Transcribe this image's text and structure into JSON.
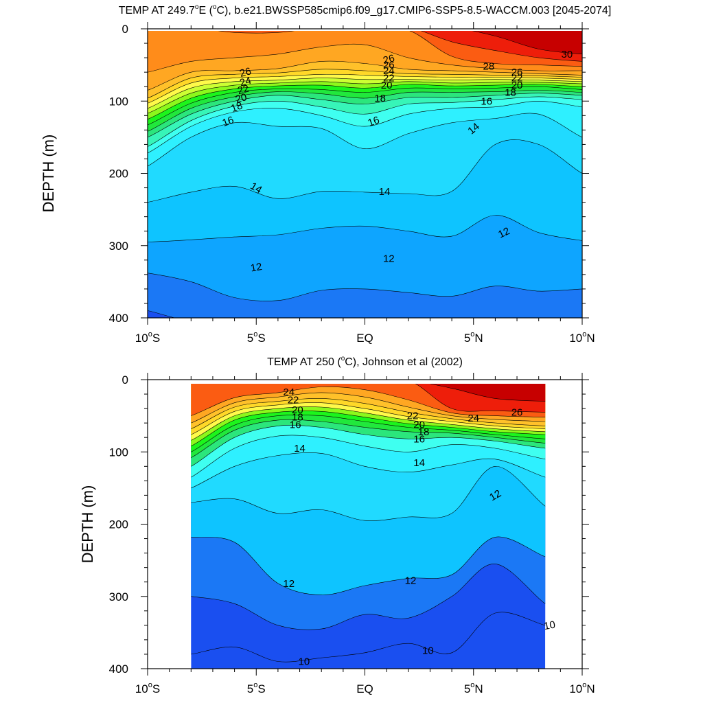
{
  "chart_data": [
    {
      "type": "heatmap",
      "title": "TEMP AT 249.7°E (°C), b.e21.BWSSP585cmip6.f09_g17.CMIP6-SSP5-8.5-WACCM.003 [2045-2074]",
      "title_parts": [
        "TEMP AT 249.7",
        "o",
        "E (",
        "o",
        "C), b.e21.BWSSP585cmip6.f09_g17.CMIP6-SSP5-8.5-WACCM.003 [2045-2074]"
      ],
      "xlabel": "",
      "ylabel": "DEPTH (m)",
      "xlim": [
        -10,
        10
      ],
      "ylim": [
        400,
        0
      ],
      "x_ticks": [
        -10,
        -5,
        0,
        5,
        10
      ],
      "x_tick_labels": [
        {
          "pre": "10",
          "sup": "o",
          "post": "S"
        },
        {
          "pre": "5",
          "sup": "o",
          "post": "S"
        },
        {
          "pre": "EQ",
          "sup": "",
          "post": ""
        },
        {
          "pre": "5",
          "sup": "o",
          "post": "N"
        },
        {
          "pre": "10",
          "sup": "o",
          "post": "N"
        }
      ],
      "y_ticks": [
        0,
        100,
        200,
        300,
        400
      ],
      "y_tick_labels": [
        "0",
        "100",
        "200",
        "300",
        "400"
      ],
      "data_xrange": [
        -10,
        10
      ],
      "contour_levels": [
        10,
        11,
        12,
        13,
        14,
        15,
        16,
        17,
        18,
        19,
        20,
        21,
        22,
        23,
        24,
        25,
        26,
        27,
        28,
        29,
        30
      ],
      "isotherm_x": [
        -10,
        -8,
        -6,
        -4,
        -2,
        0,
        2,
        4,
        6,
        8,
        10
      ],
      "isotherms": [
        {
          "level": 11,
          "depth": [
            390,
            405,
            405,
            405,
            405,
            405,
            405,
            405,
            405,
            405,
            405
          ]
        },
        {
          "level": 12,
          "depth": [
            338,
            350,
            372,
            376,
            362,
            360,
            365,
            370,
            356,
            363,
            360
          ]
        },
        {
          "level": 13,
          "depth": [
            295,
            292,
            288,
            285,
            276,
            273,
            280,
            287,
            258,
            282,
            293
          ]
        },
        {
          "level": 14,
          "depth": [
            240,
            226,
            218,
            235,
            225,
            226,
            228,
            225,
            160,
            160,
            200
          ]
        },
        {
          "level": 15,
          "depth": [
            190,
            150,
            130,
            135,
            138,
            166,
            145,
            130,
            124,
            118,
            150
          ]
        },
        {
          "level": 16,
          "depth": [
            172,
            135,
            115,
            110,
            120,
            135,
            118,
            110,
            108,
            100,
            108
          ]
        },
        {
          "level": 17,
          "depth": [
            163,
            127,
            107,
            100,
            108,
            118,
            104,
            102,
            98,
            94,
            98
          ]
        },
        {
          "level": 18,
          "depth": [
            150,
            118,
            100,
            92,
            98,
            104,
            95,
            95,
            92,
            89,
            92
          ]
        },
        {
          "level": 19,
          "depth": [
            142,
            110,
            94,
            87,
            90,
            96,
            88,
            88,
            87,
            85,
            88
          ]
        },
        {
          "level": 20,
          "depth": [
            133,
            103,
            88,
            83,
            84,
            88,
            82,
            83,
            82,
            80,
            84
          ]
        },
        {
          "level": 21,
          "depth": [
            125,
            96,
            83,
            79,
            78,
            82,
            77,
            79,
            78,
            77,
            80
          ]
        },
        {
          "level": 22,
          "depth": [
            117,
            89,
            78,
            75,
            73,
            76,
            73,
            75,
            74,
            74,
            76
          ]
        },
        {
          "level": 23,
          "depth": [
            110,
            82,
            73,
            71,
            68,
            70,
            70,
            71,
            70,
            71,
            73
          ]
        },
        {
          "level": 24,
          "depth": [
            103,
            75,
            68,
            66,
            63,
            64,
            66,
            67,
            67,
            68,
            70
          ]
        },
        {
          "level": 25,
          "depth": [
            96,
            68,
            63,
            61,
            56,
            58,
            62,
            63,
            64,
            65,
            67
          ]
        },
        {
          "level": 26,
          "depth": [
            85,
            60,
            58,
            55,
            45,
            48,
            56,
            58,
            60,
            62,
            64
          ]
        },
        {
          "level": 27,
          "depth": [
            60,
            45,
            40,
            35,
            25,
            22,
            40,
            50,
            55,
            58,
            58
          ]
        },
        {
          "level": 28,
          "depth": [
            -1,
            -1,
            5,
            5,
            -1,
            -1,
            2,
            38,
            48,
            50,
            52
          ]
        },
        {
          "level": 29,
          "depth": [
            -1,
            -1,
            -1,
            -1,
            -1,
            -1,
            -1,
            18,
            30,
            40,
            45
          ]
        },
        {
          "level": 30,
          "depth": [
            -1,
            -1,
            -1,
            -1,
            -1,
            -1,
            -1,
            -1,
            10,
            28,
            35
          ]
        }
      ],
      "contour_labels": [
        {
          "text": "30",
          "x": 9.3,
          "y": 35,
          "angle": 0
        },
        {
          "text": "28",
          "x": 5.7,
          "y": 52,
          "angle": 0
        },
        {
          "text": "26",
          "x": 7.0,
          "y": 60,
          "angle": 0
        },
        {
          "text": "22",
          "x": 7.0,
          "y": 68,
          "angle": 0
        },
        {
          "text": "20",
          "x": 7.0,
          "y": 78,
          "angle": 0
        },
        {
          "text": "18",
          "x": 6.7,
          "y": 88,
          "angle": 0
        },
        {
          "text": "16",
          "x": 5.6,
          "y": 100,
          "angle": 0
        },
        {
          "text": "14",
          "x": 5.0,
          "y": 138,
          "angle": -40
        },
        {
          "text": "12",
          "x": 6.4,
          "y": 282,
          "angle": -25
        },
        {
          "text": "26",
          "x": 1.1,
          "y": 42,
          "angle": -15
        },
        {
          "text": "26",
          "x": 1.1,
          "y": 50,
          "angle": 0
        },
        {
          "text": "24",
          "x": 1.1,
          "y": 58,
          "angle": 0
        },
        {
          "text": "22",
          "x": 1.1,
          "y": 68,
          "angle": 0
        },
        {
          "text": "20",
          "x": 1.0,
          "y": 78,
          "angle": 0
        },
        {
          "text": "18",
          "x": 0.7,
          "y": 96,
          "angle": 0
        },
        {
          "text": "16",
          "x": 0.4,
          "y": 128,
          "angle": -20
        },
        {
          "text": "14",
          "x": 0.9,
          "y": 225,
          "angle": 0
        },
        {
          "text": "12",
          "x": 1.1,
          "y": 318,
          "angle": 0
        },
        {
          "text": "26",
          "x": -5.5,
          "y": 60,
          "angle": -15
        },
        {
          "text": "24",
          "x": -5.5,
          "y": 73,
          "angle": -15
        },
        {
          "text": "22",
          "x": -5.6,
          "y": 84,
          "angle": -15
        },
        {
          "text": "20",
          "x": -5.7,
          "y": 96,
          "angle": -15
        },
        {
          "text": "18",
          "x": -5.9,
          "y": 108,
          "angle": -20
        },
        {
          "text": "16",
          "x": -6.3,
          "y": 128,
          "angle": -20
        },
        {
          "text": "14",
          "x": -5.0,
          "y": 220,
          "angle": 30
        },
        {
          "text": "12",
          "x": -5.0,
          "y": 330,
          "angle": -10
        }
      ]
    },
    {
      "type": "heatmap",
      "title": "TEMP AT 250 (°C), Johnson et al (2002)",
      "title_parts": [
        "TEMP AT 250 (",
        "o",
        "C), Johnson et al (2002)"
      ],
      "xlabel": "",
      "ylabel": "DEPTH (m)",
      "xlim": [
        -10,
        10
      ],
      "ylim": [
        400,
        0
      ],
      "x_ticks": [
        -10,
        -5,
        0,
        5,
        10
      ],
      "x_tick_labels": [
        {
          "pre": "10",
          "sup": "o",
          "post": "S"
        },
        {
          "pre": "5",
          "sup": "o",
          "post": "S"
        },
        {
          "pre": "EQ",
          "sup": "",
          "post": ""
        },
        {
          "pre": "5",
          "sup": "o",
          "post": "N"
        },
        {
          "pre": "10",
          "sup": "o",
          "post": "N"
        }
      ],
      "y_ticks": [
        0,
        100,
        200,
        300,
        400
      ],
      "y_tick_labels": [
        "0",
        "100",
        "200",
        "300",
        "400"
      ],
      "data_xrange": [
        -8,
        8.3
      ],
      "contour_levels": [
        10,
        11,
        12,
        13,
        14,
        15,
        16,
        17,
        18,
        19,
        20,
        21,
        22,
        23,
        24,
        25,
        26
      ],
      "isotherm_x": [
        -8,
        -6,
        -4,
        -2,
        0,
        2,
        4,
        6,
        8.3
      ],
      "isotherms": [
        {
          "level": 10,
          "depth": [
            380,
            370,
            390,
            385,
            378,
            365,
            378,
            323,
            340
          ]
        },
        {
          "level": 11,
          "depth": [
            300,
            310,
            340,
            345,
            325,
            330,
            300,
            255,
            310
          ]
        },
        {
          "level": 12,
          "depth": [
            218,
            225,
            282,
            298,
            285,
            275,
            270,
            218,
            245
          ]
        },
        {
          "level": 13,
          "depth": [
            170,
            165,
            185,
            180,
            195,
            190,
            185,
            120,
            175
          ]
        },
        {
          "level": 14,
          "depth": [
            150,
            120,
            105,
            102,
            120,
            128,
            118,
            110,
            135
          ]
        },
        {
          "level": 15,
          "depth": [
            135,
            95,
            78,
            80,
            92,
            100,
            90,
            95,
            110
          ]
        },
        {
          "level": 16,
          "depth": [
            120,
            80,
            64,
            66,
            76,
            82,
            80,
            85,
            95
          ]
        },
        {
          "level": 17,
          "depth": [
            108,
            70,
            56,
            58,
            66,
            72,
            74,
            80,
            88
          ]
        },
        {
          "level": 18,
          "depth": [
            100,
            63,
            50,
            50,
            58,
            66,
            70,
            76,
            82
          ]
        },
        {
          "level": 19,
          "depth": [
            92,
            56,
            45,
            44,
            52,
            61,
            66,
            72,
            76
          ]
        },
        {
          "level": 20,
          "depth": [
            84,
            50,
            40,
            38,
            46,
            56,
            62,
            68,
            72
          ]
        },
        {
          "level": 21,
          "depth": [
            76,
            44,
            35,
            32,
            40,
            51,
            58,
            64,
            68
          ]
        },
        {
          "level": 22,
          "depth": [
            68,
            38,
            30,
            26,
            33,
            45,
            54,
            60,
            64
          ]
        },
        {
          "level": 23,
          "depth": [
            60,
            32,
            24,
            18,
            24,
            38,
            50,
            55,
            58
          ]
        },
        {
          "level": 24,
          "depth": [
            50,
            25,
            18,
            10,
            14,
            28,
            46,
            50,
            52
          ]
        },
        {
          "level": 25,
          "depth": [
            -1,
            -1,
            -1,
            -1,
            -1,
            -1,
            40,
            43,
            45
          ]
        },
        {
          "level": 26,
          "depth": [
            -1,
            -1,
            -1,
            -1,
            -1,
            -1,
            12,
            26,
            30
          ]
        }
      ],
      "contour_labels": [
        {
          "text": "24",
          "x": -3.5,
          "y": 17,
          "angle": 0
        },
        {
          "text": "22",
          "x": -3.3,
          "y": 28,
          "angle": 0
        },
        {
          "text": "20",
          "x": -3.1,
          "y": 42,
          "angle": 0
        },
        {
          "text": "18",
          "x": -3.1,
          "y": 52,
          "angle": 0
        },
        {
          "text": "16",
          "x": -3.2,
          "y": 62,
          "angle": 0
        },
        {
          "text": "14",
          "x": -3.0,
          "y": 95,
          "angle": 0
        },
        {
          "text": "12",
          "x": -3.5,
          "y": 282,
          "angle": 0
        },
        {
          "text": "10",
          "x": -2.8,
          "y": 390,
          "angle": 0
        },
        {
          "text": "22",
          "x": 2.2,
          "y": 50,
          "angle": 0
        },
        {
          "text": "20",
          "x": 2.5,
          "y": 62,
          "angle": 0
        },
        {
          "text": "18",
          "x": 2.7,
          "y": 72,
          "angle": 0
        },
        {
          "text": "16",
          "x": 2.5,
          "y": 82,
          "angle": 0
        },
        {
          "text": "14",
          "x": 2.5,
          "y": 115,
          "angle": 0
        },
        {
          "text": "12",
          "x": 2.1,
          "y": 278,
          "angle": 0
        },
        {
          "text": "10",
          "x": 2.9,
          "y": 375,
          "angle": 0
        },
        {
          "text": "24",
          "x": 5.0,
          "y": 53,
          "angle": 0
        },
        {
          "text": "26",
          "x": 7.0,
          "y": 45,
          "angle": 0
        },
        {
          "text": "12",
          "x": 6.0,
          "y": 160,
          "angle": -30
        },
        {
          "text": "10",
          "x": 8.5,
          "y": 340,
          "angle": -10
        }
      ]
    }
  ],
  "colors": {
    "ramp": [
      "#1a4ff0",
      "#1b78f5",
      "#0ea5ff",
      "#0ec4ff",
      "#20daff",
      "#2ef0ff",
      "#3ffff0",
      "#37f5b8",
      "#2be67c",
      "#21e83c",
      "#1cf51c",
      "#8cf81c",
      "#ccff33",
      "#fffa4a",
      "#ffd828",
      "#ffc12a",
      "#ffa722",
      "#ff8c1a",
      "#fb5c12",
      "#ee1e0a",
      "#c70000"
    ],
    "contour_line": "#000000",
    "axis": "#000000"
  }
}
